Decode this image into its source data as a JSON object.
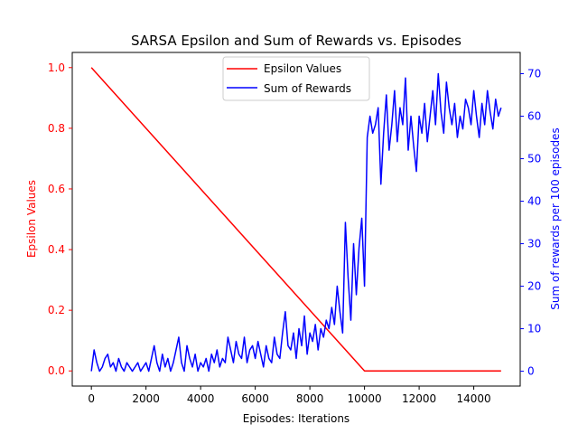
{
  "chart_data": {
    "type": "line",
    "title": "SARSA Epsilon and Sum of Rewards vs. Episodes",
    "xlabel": "Episodes: Iterations",
    "ylabel_left": "Epsilon Values",
    "ylabel_right": "Sum of rewards per 100 episodes",
    "xlim": [
      -700,
      15700
    ],
    "ylim_left": [
      -0.05,
      1.05
    ],
    "ylim_right": [
      -3.5,
      75
    ],
    "x_ticks": [
      0,
      2000,
      4000,
      6000,
      8000,
      10000,
      12000,
      14000
    ],
    "y_ticks_left": [
      0.0,
      0.2,
      0.4,
      0.6,
      0.8,
      1.0
    ],
    "y_ticks_right": [
      0,
      10,
      20,
      30,
      40,
      50,
      60,
      70
    ],
    "grid": false,
    "legend_position": "top-center",
    "colors": {
      "epsilon": "#ff0000",
      "rewards": "#0000ff",
      "axis": "#000000"
    },
    "series": [
      {
        "name": "Epsilon Values",
        "axis": "left",
        "x": [
          0,
          10000,
          15000
        ],
        "y": [
          1.0,
          0.0,
          0.0
        ]
      },
      {
        "name": "Sum of Rewards",
        "axis": "right",
        "x": [
          0,
          100,
          200,
          300,
          400,
          500,
          600,
          700,
          800,
          900,
          1000,
          1100,
          1200,
          1300,
          1400,
          1500,
          1600,
          1700,
          1800,
          1900,
          2000,
          2100,
          2200,
          2300,
          2400,
          2500,
          2600,
          2700,
          2800,
          2900,
          3000,
          3100,
          3200,
          3300,
          3400,
          3500,
          3600,
          3700,
          3800,
          3900,
          4000,
          4100,
          4200,
          4300,
          4400,
          4500,
          4600,
          4700,
          4800,
          4900,
          5000,
          5100,
          5200,
          5300,
          5400,
          5500,
          5600,
          5700,
          5800,
          5900,
          6000,
          6100,
          6200,
          6300,
          6400,
          6500,
          6600,
          6700,
          6800,
          6900,
          7000,
          7100,
          7200,
          7300,
          7400,
          7500,
          7600,
          7700,
          7800,
          7900,
          8000,
          8100,
          8200,
          8300,
          8400,
          8500,
          8600,
          8700,
          8800,
          8900,
          9000,
          9100,
          9200,
          9300,
          9400,
          9500,
          9600,
          9700,
          9800,
          9900,
          10000,
          10100,
          10200,
          10300,
          10400,
          10500,
          10600,
          10700,
          10800,
          10900,
          11000,
          11100,
          11200,
          11300,
          11400,
          11500,
          11600,
          11700,
          11800,
          11900,
          12000,
          12100,
          12200,
          12300,
          12400,
          12500,
          12600,
          12700,
          12800,
          12900,
          13000,
          13100,
          13200,
          13300,
          13400,
          13500,
          13600,
          13700,
          13800,
          13900,
          14000,
          14100,
          14200,
          14300,
          14400,
          14500,
          14600,
          14700,
          14800,
          14900,
          15000
        ],
        "y": [
          0,
          5,
          2,
          0,
          1,
          3,
          4,
          1,
          2,
          0,
          3,
          1,
          0,
          2,
          1,
          0,
          1,
          2,
          0,
          1,
          2,
          0,
          3,
          6,
          2,
          0,
          4,
          1,
          3,
          0,
          2,
          5,
          8,
          2,
          0,
          6,
          3,
          1,
          4,
          0,
          2,
          1,
          3,
          0,
          4,
          2,
          5,
          1,
          3,
          2,
          8,
          5,
          2,
          7,
          4,
          3,
          8,
          2,
          5,
          6,
          3,
          7,
          4,
          1,
          6,
          3,
          2,
          8,
          4,
          3,
          9,
          14,
          6,
          5,
          9,
          3,
          10,
          6,
          13,
          4,
          9,
          7,
          11,
          5,
          10,
          8,
          12,
          10,
          15,
          11,
          20,
          14,
          9,
          35,
          22,
          12,
          30,
          18,
          29,
          36,
          20,
          55,
          60,
          56,
          58,
          62,
          44,
          56,
          65,
          52,
          58,
          66,
          54,
          62,
          58,
          69,
          52,
          60,
          53,
          47,
          60,
          56,
          63,
          54,
          60,
          66,
          58,
          70,
          61,
          56,
          68,
          62,
          58,
          63,
          55,
          60,
          57,
          64,
          62,
          58,
          66,
          60,
          55,
          63,
          58,
          66,
          61,
          57,
          64,
          60,
          62
        ]
      }
    ]
  }
}
